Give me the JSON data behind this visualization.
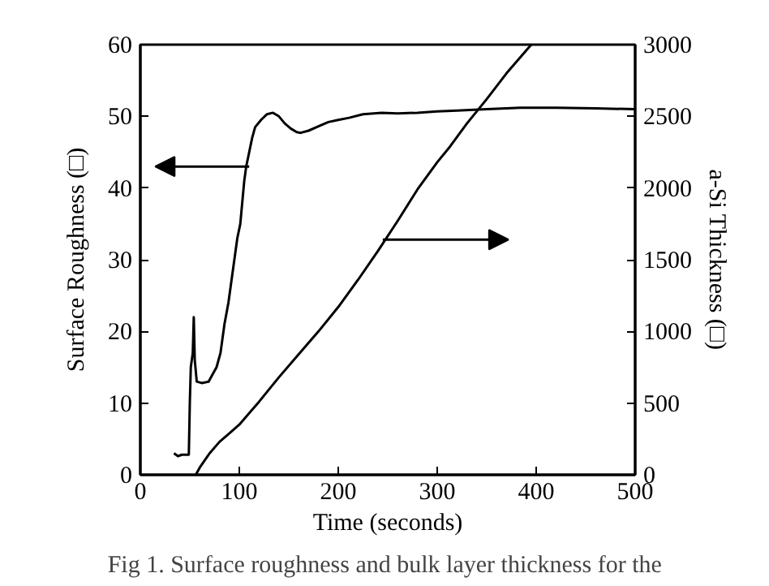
{
  "chart_data": {
    "type": "line",
    "xlabel": "Time (seconds)",
    "ylabel": "Surface Roughness (□)",
    "y2label": "a-Si Thickness (□)",
    "xlim": [
      0,
      500
    ],
    "xticks": [
      0,
      100,
      200,
      300,
      400,
      500
    ],
    "ylim": [
      0,
      60
    ],
    "yticks": [
      0,
      10,
      20,
      30,
      40,
      50,
      60
    ],
    "y2lim": [
      0,
      3000
    ],
    "y2ticks": [
      0,
      500,
      1000,
      1500,
      2000,
      2500,
      3000
    ],
    "grid": false,
    "annotations": [
      "Fig 1.  Surface roughness and bulk layer thickness for the"
    ],
    "series": [
      {
        "color": "#000000",
        "x": [
          34,
          38,
          42,
          49,
          50,
          51,
          53,
          54,
          55,
          57,
          62,
          69,
          73,
          77,
          81,
          85,
          89,
          92,
          95,
          98,
          101,
          103,
          105,
          107,
          110,
          113,
          116,
          122,
          128,
          134,
          140,
          146,
          152,
          158,
          162,
          170,
          180,
          190,
          200,
          211,
          225,
          244,
          260,
          280,
          300,
          320,
          350,
          384,
          420,
          460,
          500
        ],
        "values": [
          3,
          2.6,
          2.8,
          2.8,
          10,
          15,
          17,
          22,
          16,
          13,
          12.8,
          13,
          14,
          15,
          17,
          21,
          24,
          27,
          30,
          33,
          35,
          38,
          41,
          43,
          45,
          47,
          48.5,
          49.5,
          50.3,
          50.5,
          50,
          49,
          48.3,
          47.8,
          47.7,
          48,
          48.6,
          49.2,
          49.5,
          49.8,
          50.3,
          50.5,
          50.4,
          50.5,
          50.7,
          50.8,
          51,
          51.2,
          51.2,
          51.1,
          51
        ]
      },
      {
        "color": "#000000",
        "axis": "y2",
        "x": [
          56,
          60,
          70,
          80,
          90,
          100,
          120,
          140,
          160,
          180,
          200,
          220,
          240,
          260,
          280,
          300,
          313,
          330,
          350,
          370,
          395
        ],
        "values": [
          0,
          50,
          150,
          230,
          290,
          350,
          510,
          680,
          840,
          1000,
          1170,
          1360,
          1560,
          1770,
          1990,
          2180,
          2290,
          2450,
          2620,
          2800,
          3000
        ]
      }
    ]
  }
}
